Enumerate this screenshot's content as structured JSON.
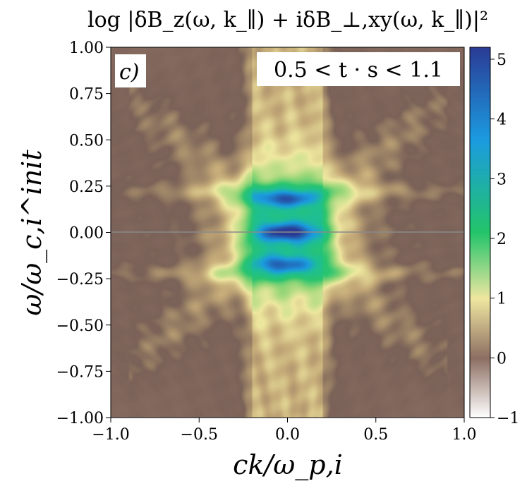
{
  "chart_data": {
    "type": "heatmap",
    "title": "log |δB_z(ω, k_∥) + iδB_⊥,xy(ω, k_∥)|²",
    "panel_label": "c)",
    "annotation": "0.5 < t · s < 1.1",
    "xlabel": "ck/ω_p,i",
    "ylabel": "ω/ω_c,i^init",
    "xlim": [
      -1.0,
      1.0
    ],
    "ylim": [
      -1.0,
      1.0
    ],
    "x_ticks": [
      "−1.0",
      "−0.5",
      "0.0",
      "0.5",
      "1.0"
    ],
    "x_tick_values": [
      -1.0,
      -0.5,
      0.0,
      0.5,
      1.0
    ],
    "y_ticks": [
      "1.00",
      "0.75",
      "0.50",
      "0.25",
      "0.00",
      "−0.25",
      "−0.50",
      "−0.75",
      "−1.00"
    ],
    "y_tick_values": [
      1.0,
      0.75,
      0.5,
      0.25,
      0.0,
      -0.25,
      -0.5,
      -0.75,
      -1.0
    ],
    "colorbar": {
      "range": [
        -1,
        5.2
      ],
      "ticks": [
        "5",
        "4",
        "3",
        "2",
        "1",
        "0",
        "−1"
      ],
      "tick_values": [
        5,
        4,
        3,
        2,
        1,
        0,
        -1
      ],
      "colormap": "terrain_r",
      "colors": [
        "#ffffff",
        "#8c6e62",
        "#efe6a0",
        "#22c46a",
        "#1b9be0",
        "#2a3b95"
      ]
    },
    "features": {
      "max_value": 5.2,
      "min_value": -1,
      "peaks": [
        {
          "x": -0.02,
          "y": 0.18,
          "value": 5.0
        },
        {
          "x": 0.0,
          "y": 0.0,
          "value": 5.1
        },
        {
          "x": -0.02,
          "y": -0.17,
          "value": 4.9
        }
      ],
      "vertical_band_x": [
        -0.2,
        0.2
      ],
      "horizontal_bands_y": [
        0.22,
        -0.22
      ],
      "background_value": 0.8
    }
  }
}
